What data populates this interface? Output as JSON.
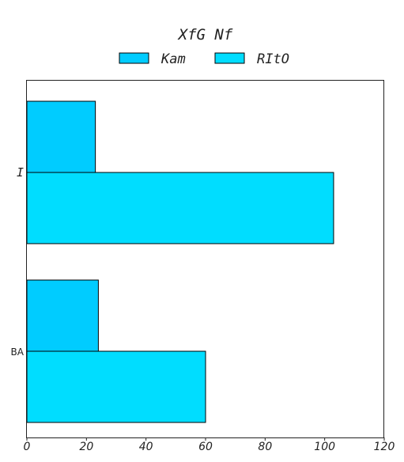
{
  "chart_data": {
    "type": "bar",
    "orientation": "horizontal",
    "title": "XfG Nf",
    "categories": [
      "I",
      "BA"
    ],
    "series": [
      {
        "name": "Kam",
        "values": [
          23,
          24
        ],
        "color": "#00CCFF"
      },
      {
        "name": "RItO",
        "values": [
          103,
          60
        ],
        "color": "#00DDFF"
      }
    ],
    "xlim": [
      0,
      120
    ],
    "xticks": [
      0,
      20,
      40,
      60,
      80,
      100,
      120
    ],
    "grid": false,
    "legend_position": "top-center"
  }
}
